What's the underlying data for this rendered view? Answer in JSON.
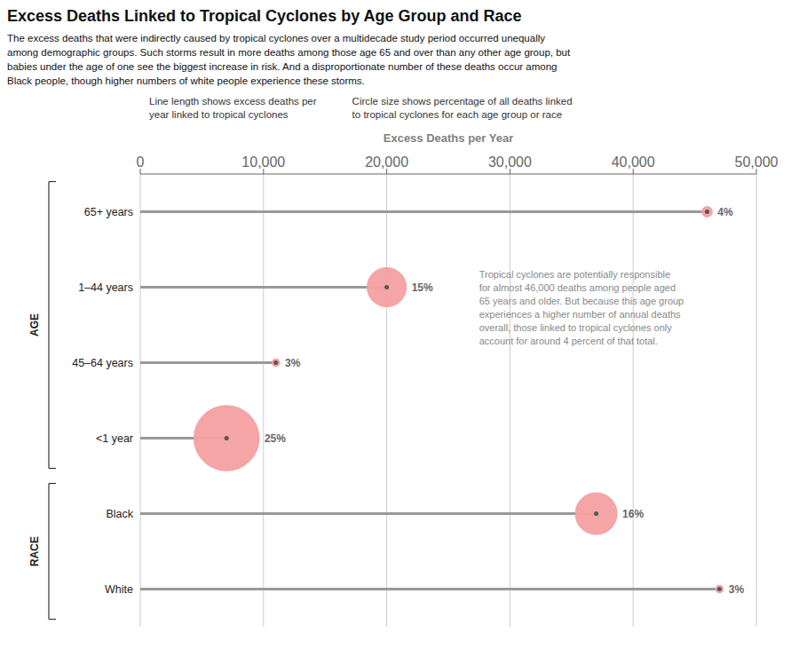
{
  "chart_data": {
    "type": "lollipop",
    "orientation": "horizontal",
    "title": "Excess Deaths Linked to Tropical Cyclones by Age Group and Race",
    "subtitle": "The excess deaths that were indirectly caused by tropical cyclones over a multidecade study period occurred unequally\namong demographic groups. Such storms result in more deaths among those age 65 and over than any other age group, but\nbabies under the age of one see the biggest increase in risk. And a disproportionate number of these deaths occur among\nBlack people, though higher numbers of white people experience these storms.",
    "xlabel": "Excess Deaths per Year",
    "categories": [
      "65+ years",
      "1–44 years",
      "45–64 years",
      "<1 year",
      "Black",
      "White"
    ],
    "values": [
      46000,
      20000,
      11000,
      7000,
      37000,
      47000
    ],
    "bubble_sizes": [
      4,
      15,
      3,
      25,
      16,
      3
    ],
    "bubble_labels": [
      "4%",
      "15%",
      "3%",
      "25%",
      "16%",
      "3%"
    ],
    "groups": [
      {
        "name": "AGE",
        "categories": [
          "65+ years",
          "1–44 years",
          "45–64 years",
          "<1 year"
        ]
      },
      {
        "name": "RACE",
        "categories": [
          "Black",
          "White"
        ]
      }
    ],
    "legend_texts": [
      "Line length shows excess deaths per\nyear linked to tropical cyclones",
      "Circle size shows percentage of all deaths linked\nto tropical cyclones for each age group or race"
    ],
    "annotations": [
      "Tropical cyclones are potentially responsible\nfor almost 46,000 deaths among people aged\n65 years and older. But because this age group\nexperiences a higher number of annual deaths\noverall, those linked to tropical cyclones only\naccount for around 4 percent of that total."
    ],
    "xlim": [
      0,
      50000
    ],
    "xticks": [
      0,
      {
        "value": 10000,
        "label": "10,000"
      },
      {
        "value": 20000,
        "label": "20,000"
      },
      {
        "value": 30000,
        "label": "30,000"
      },
      {
        "value": 40000,
        "label": "40,000"
      },
      {
        "value": 50000,
        "label": "50,000"
      }
    ],
    "grid": true,
    "color": "#f4a0a0"
  }
}
